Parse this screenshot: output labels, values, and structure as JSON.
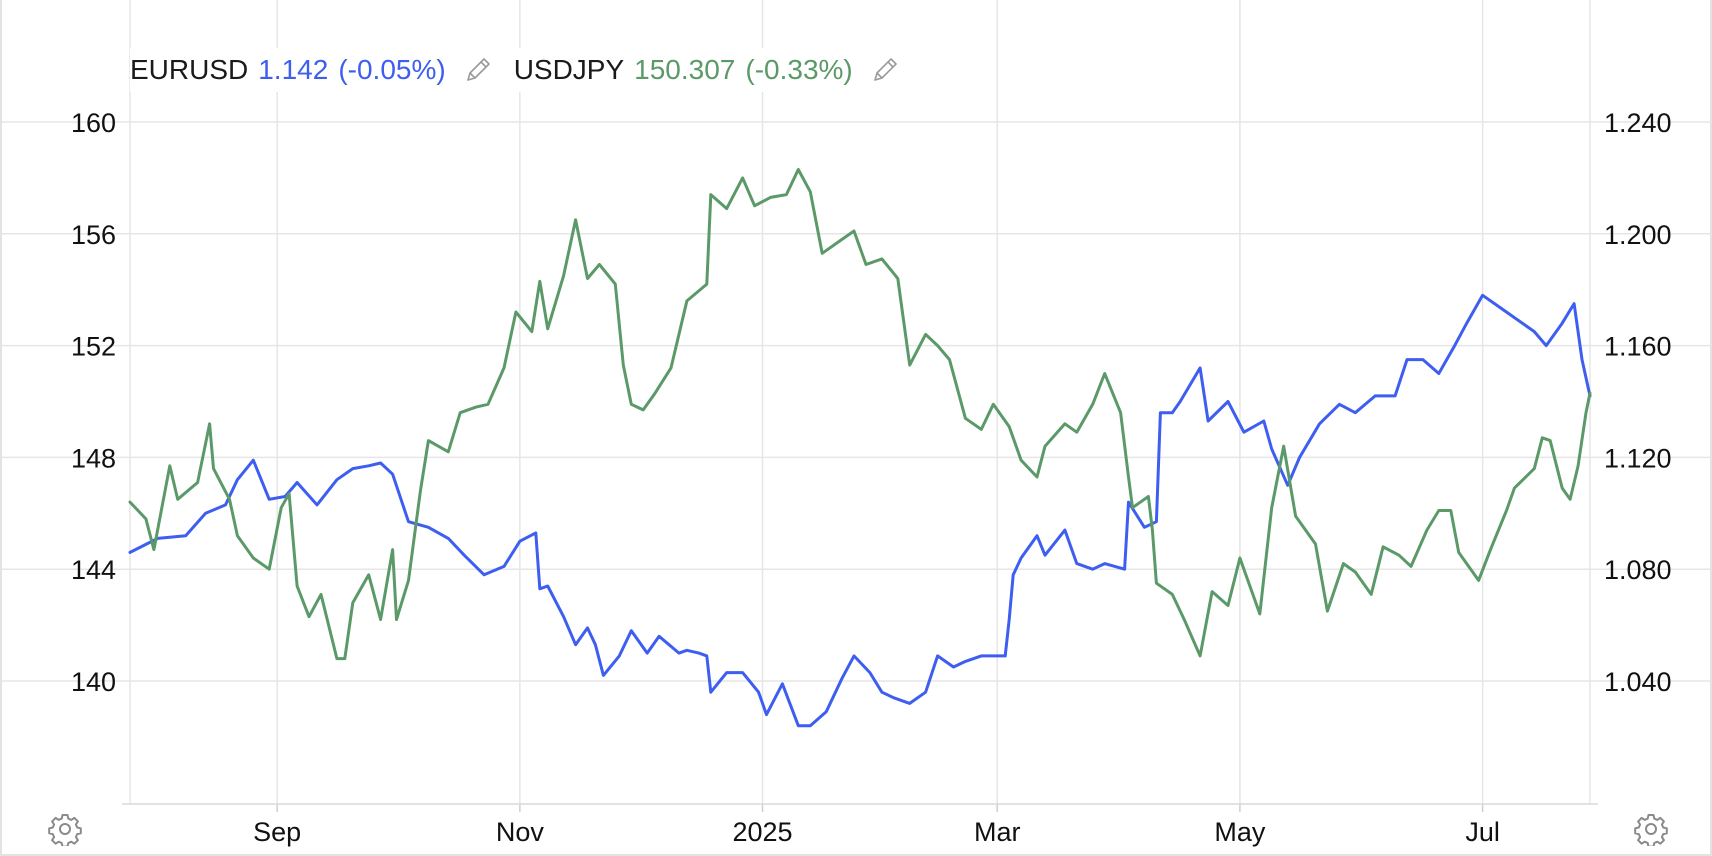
{
  "legend": {
    "series1": {
      "symbol": "EURUSD",
      "value": "1.142",
      "change": "(-0.05%)",
      "color": "#3d5ef0"
    },
    "series2": {
      "symbol": "USDJPY",
      "value": "150.307",
      "change": "(-0.33%)",
      "color": "#5b9a68"
    }
  },
  "icons": {
    "edit": "pencil-icon",
    "settings": "gear-icon"
  },
  "chart_data": {
    "type": "line",
    "grid": true,
    "legend_position": "top-left",
    "x_range": [
      "2024-07-26",
      "2025-07-28"
    ],
    "x_ticks": [
      {
        "date": "2024-09-01",
        "label": "Sep"
      },
      {
        "date": "2024-11-01",
        "label": "Nov"
      },
      {
        "date": "2025-01-01",
        "label": "2025"
      },
      {
        "date": "2025-03-01",
        "label": "Mar"
      },
      {
        "date": "2025-05-01",
        "label": "May"
      },
      {
        "date": "2025-07-01",
        "label": "Jul"
      }
    ],
    "left_axis": {
      "series": "USDJPY",
      "ticks": [
        140,
        144,
        148,
        152,
        156,
        160
      ],
      "tick_labels": [
        "140",
        "144",
        "148",
        "152",
        "156",
        "160"
      ],
      "range": [
        135.6,
        161
      ]
    },
    "right_axis": {
      "series": "EURUSD",
      "ticks": [
        1.04,
        1.08,
        1.12,
        1.16,
        1.2,
        1.24
      ],
      "tick_labels": [
        "1.040",
        "1.080",
        "1.120",
        "1.160",
        "1.200",
        "1.240"
      ],
      "range": [
        0.996,
        1.25
      ]
    },
    "series": [
      {
        "name": "EURUSD",
        "axis": "right",
        "color": "#3d5ef0",
        "points": [
          [
            "2024-07-26",
            1.086
          ],
          [
            "2024-08-02",
            1.091
          ],
          [
            "2024-08-09",
            1.092
          ],
          [
            "2024-08-14",
            1.1
          ],
          [
            "2024-08-19",
            1.103
          ],
          [
            "2024-08-22",
            1.112
          ],
          [
            "2024-08-26",
            1.119
          ],
          [
            "2024-08-30",
            1.105
          ],
          [
            "2024-09-03",
            1.106
          ],
          [
            "2024-09-06",
            1.111
          ],
          [
            "2024-09-11",
            1.103
          ],
          [
            "2024-09-16",
            1.112
          ],
          [
            "2024-09-20",
            1.116
          ],
          [
            "2024-09-24",
            1.117
          ],
          [
            "2024-09-27",
            1.118
          ],
          [
            "2024-09-30",
            1.114
          ],
          [
            "2024-10-04",
            1.097
          ],
          [
            "2024-10-09",
            1.095
          ],
          [
            "2024-10-14",
            1.091
          ],
          [
            "2024-10-18",
            1.085
          ],
          [
            "2024-10-23",
            1.078
          ],
          [
            "2024-10-28",
            1.081
          ],
          [
            "2024-11-01",
            1.09
          ],
          [
            "2024-11-05",
            1.093
          ],
          [
            "2024-11-06",
            1.073
          ],
          [
            "2024-11-08",
            1.074
          ],
          [
            "2024-11-12",
            1.063
          ],
          [
            "2024-11-15",
            1.053
          ],
          [
            "2024-11-18",
            1.059
          ],
          [
            "2024-11-20",
            1.053
          ],
          [
            "2024-11-22",
            1.042
          ],
          [
            "2024-11-26",
            1.049
          ],
          [
            "2024-11-29",
            1.058
          ],
          [
            "2024-12-03",
            1.05
          ],
          [
            "2024-12-06",
            1.056
          ],
          [
            "2024-12-11",
            1.05
          ],
          [
            "2024-12-13",
            1.051
          ],
          [
            "2024-12-16",
            1.05
          ],
          [
            "2024-12-18",
            1.049
          ],
          [
            "2024-12-19",
            1.036
          ],
          [
            "2024-12-23",
            1.043
          ],
          [
            "2024-12-27",
            1.043
          ],
          [
            "2024-12-31",
            1.036
          ],
          [
            "2025-01-02",
            1.028
          ],
          [
            "2025-01-06",
            1.039
          ],
          [
            "2025-01-10",
            1.024
          ],
          [
            "2025-01-13",
            1.024
          ],
          [
            "2025-01-17",
            1.029
          ],
          [
            "2025-01-21",
            1.041
          ],
          [
            "2025-01-24",
            1.049
          ],
          [
            "2025-01-28",
            1.043
          ],
          [
            "2025-01-31",
            1.036
          ],
          [
            "2025-02-03",
            1.034
          ],
          [
            "2025-02-07",
            1.032
          ],
          [
            "2025-02-11",
            1.036
          ],
          [
            "2025-02-14",
            1.049
          ],
          [
            "2025-02-18",
            1.045
          ],
          [
            "2025-02-21",
            1.047
          ],
          [
            "2025-02-25",
            1.049
          ],
          [
            "2025-03-03",
            1.049
          ],
          [
            "2025-03-04",
            1.062
          ],
          [
            "2025-03-05",
            1.078
          ],
          [
            "2025-03-07",
            1.084
          ],
          [
            "2025-03-11",
            1.092
          ],
          [
            "2025-03-13",
            1.085
          ],
          [
            "2025-03-18",
            1.094
          ],
          [
            "2025-03-21",
            1.082
          ],
          [
            "2025-03-25",
            1.08
          ],
          [
            "2025-03-28",
            1.082
          ],
          [
            "2025-04-02",
            1.08
          ],
          [
            "2025-04-03",
            1.104
          ],
          [
            "2025-04-07",
            1.095
          ],
          [
            "2025-04-10",
            1.097
          ],
          [
            "2025-04-11",
            1.136
          ],
          [
            "2025-04-14",
            1.136
          ],
          [
            "2025-04-16",
            1.14
          ],
          [
            "2025-04-21",
            1.152
          ],
          [
            "2025-04-23",
            1.133
          ],
          [
            "2025-04-28",
            1.14
          ],
          [
            "2025-05-02",
            1.129
          ],
          [
            "2025-05-07",
            1.133
          ],
          [
            "2025-05-09",
            1.123
          ],
          [
            "2025-05-13",
            1.11
          ],
          [
            "2025-05-16",
            1.12
          ],
          [
            "2025-05-21",
            1.132
          ],
          [
            "2025-05-26",
            1.139
          ],
          [
            "2025-05-30",
            1.136
          ],
          [
            "2025-06-04",
            1.142
          ],
          [
            "2025-06-09",
            1.142
          ],
          [
            "2025-06-12",
            1.155
          ],
          [
            "2025-06-16",
            1.155
          ],
          [
            "2025-06-20",
            1.15
          ],
          [
            "2025-06-24",
            1.16
          ],
          [
            "2025-06-27",
            1.168
          ],
          [
            "2025-07-01",
            1.178
          ],
          [
            "2025-07-04",
            1.175
          ],
          [
            "2025-07-09",
            1.17
          ],
          [
            "2025-07-14",
            1.165
          ],
          [
            "2025-07-17",
            1.16
          ],
          [
            "2025-07-21",
            1.168
          ],
          [
            "2025-07-24",
            1.175
          ],
          [
            "2025-07-26",
            1.155
          ],
          [
            "2025-07-28",
            1.142
          ]
        ]
      },
      {
        "name": "USDJPY",
        "axis": "left",
        "color": "#5b9a68",
        "points": [
          [
            "2024-07-26",
            146.4
          ],
          [
            "2024-07-30",
            145.8
          ],
          [
            "2024-08-01",
            144.7
          ],
          [
            "2024-08-05",
            147.7
          ],
          [
            "2024-08-07",
            146.5
          ],
          [
            "2024-08-12",
            147.1
          ],
          [
            "2024-08-15",
            149.2
          ],
          [
            "2024-08-16",
            147.6
          ],
          [
            "2024-08-20",
            146.5
          ],
          [
            "2024-08-22",
            145.2
          ],
          [
            "2024-08-26",
            144.4
          ],
          [
            "2024-08-30",
            144.0
          ],
          [
            "2024-09-02",
            146.2
          ],
          [
            "2024-09-04",
            146.7
          ],
          [
            "2024-09-06",
            143.4
          ],
          [
            "2024-09-09",
            142.3
          ],
          [
            "2024-09-12",
            143.1
          ],
          [
            "2024-09-16",
            140.8
          ],
          [
            "2024-09-18",
            140.8
          ],
          [
            "2024-09-20",
            142.8
          ],
          [
            "2024-09-24",
            143.8
          ],
          [
            "2024-09-27",
            142.2
          ],
          [
            "2024-09-30",
            144.7
          ],
          [
            "2024-10-01",
            142.2
          ],
          [
            "2024-10-04",
            143.6
          ],
          [
            "2024-10-07",
            146.8
          ],
          [
            "2024-10-09",
            148.6
          ],
          [
            "2024-10-14",
            148.2
          ],
          [
            "2024-10-17",
            149.6
          ],
          [
            "2024-10-21",
            149.8
          ],
          [
            "2024-10-24",
            149.9
          ],
          [
            "2024-10-28",
            151.2
          ],
          [
            "2024-10-31",
            153.2
          ],
          [
            "2024-11-04",
            152.5
          ],
          [
            "2024-11-06",
            154.3
          ],
          [
            "2024-11-08",
            152.6
          ],
          [
            "2024-11-12",
            154.5
          ],
          [
            "2024-11-15",
            156.5
          ],
          [
            "2024-11-18",
            154.4
          ],
          [
            "2024-11-21",
            154.9
          ],
          [
            "2024-11-25",
            154.2
          ],
          [
            "2024-11-27",
            151.3
          ],
          [
            "2024-11-29",
            149.9
          ],
          [
            "2024-12-02",
            149.7
          ],
          [
            "2024-12-05",
            150.3
          ],
          [
            "2024-12-09",
            151.2
          ],
          [
            "2024-12-13",
            153.6
          ],
          [
            "2024-12-18",
            154.2
          ],
          [
            "2024-12-19",
            157.4
          ],
          [
            "2024-12-23",
            156.9
          ],
          [
            "2024-12-27",
            158.0
          ],
          [
            "2024-12-30",
            157.0
          ],
          [
            "2025-01-03",
            157.3
          ],
          [
            "2025-01-07",
            157.4
          ],
          [
            "2025-01-10",
            158.3
          ],
          [
            "2025-01-13",
            157.5
          ],
          [
            "2025-01-16",
            155.3
          ],
          [
            "2025-01-20",
            155.7
          ],
          [
            "2025-01-24",
            156.1
          ],
          [
            "2025-01-27",
            154.9
          ],
          [
            "2025-01-31",
            155.1
          ],
          [
            "2025-02-04",
            154.4
          ],
          [
            "2025-02-07",
            151.3
          ],
          [
            "2025-02-11",
            152.4
          ],
          [
            "2025-02-14",
            152.0
          ],
          [
            "2025-02-17",
            151.5
          ],
          [
            "2025-02-21",
            149.4
          ],
          [
            "2025-02-25",
            149.0
          ],
          [
            "2025-02-28",
            149.9
          ],
          [
            "2025-03-04",
            149.1
          ],
          [
            "2025-03-07",
            147.9
          ],
          [
            "2025-03-11",
            147.3
          ],
          [
            "2025-03-13",
            148.4
          ],
          [
            "2025-03-18",
            149.2
          ],
          [
            "2025-03-21",
            148.9
          ],
          [
            "2025-03-25",
            149.9
          ],
          [
            "2025-03-28",
            151.0
          ],
          [
            "2025-04-01",
            149.6
          ],
          [
            "2025-04-03",
            147.3
          ],
          [
            "2025-04-04",
            146.2
          ],
          [
            "2025-04-08",
            146.6
          ],
          [
            "2025-04-09",
            145.4
          ],
          [
            "2025-04-10",
            143.5
          ],
          [
            "2025-04-14",
            143.1
          ],
          [
            "2025-04-17",
            142.2
          ],
          [
            "2025-04-21",
            140.9
          ],
          [
            "2025-04-24",
            143.2
          ],
          [
            "2025-04-28",
            142.7
          ],
          [
            "2025-05-01",
            144.4
          ],
          [
            "2025-05-06",
            142.4
          ],
          [
            "2025-05-09",
            146.2
          ],
          [
            "2025-05-12",
            148.4
          ],
          [
            "2025-05-15",
            145.9
          ],
          [
            "2025-05-20",
            144.9
          ],
          [
            "2025-05-23",
            142.5
          ],
          [
            "2025-05-27",
            144.2
          ],
          [
            "2025-05-30",
            143.9
          ],
          [
            "2025-06-03",
            143.1
          ],
          [
            "2025-06-06",
            144.8
          ],
          [
            "2025-06-10",
            144.5
          ],
          [
            "2025-06-13",
            144.1
          ],
          [
            "2025-06-17",
            145.4
          ],
          [
            "2025-06-20",
            146.1
          ],
          [
            "2025-06-23",
            146.1
          ],
          [
            "2025-06-25",
            144.6
          ],
          [
            "2025-06-30",
            143.6
          ],
          [
            "2025-07-03",
            144.7
          ],
          [
            "2025-07-07",
            146.1
          ],
          [
            "2025-07-09",
            146.9
          ],
          [
            "2025-07-14",
            147.6
          ],
          [
            "2025-07-16",
            148.7
          ],
          [
            "2025-07-18",
            148.6
          ],
          [
            "2025-07-21",
            146.9
          ],
          [
            "2025-07-23",
            146.5
          ],
          [
            "2025-07-25",
            147.7
          ],
          [
            "2025-07-27",
            149.6
          ],
          [
            "2025-07-28",
            150.3
          ]
        ]
      }
    ]
  }
}
